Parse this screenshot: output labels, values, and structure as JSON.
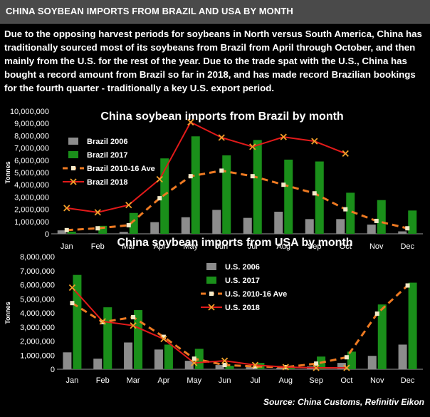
{
  "header": {
    "title": "CHINA SOYBEAN IMPORTS FROM BRAZIL AND USA BY MONTH"
  },
  "description": "Due to the opposing harvest periods for soybeans in North versus South America,  China has traditionally sourced most of its soybeans from Brazil from April through October, and then mainly from the U.S. for the rest of the year. Due to the trade spat with the U.S.,  China has bought a record amount from Brazil so far in 2018, and has made record Brazilian bookings for the fourth quarter - traditionally a key U.S. export period.",
  "source": "Source: China Customs, Refinitiv Eikon",
  "colors": {
    "bar_old": "#8c8c8c",
    "bar_new": "#1a8f1a",
    "avg_line": "#ee7a22",
    "line_2018": "#e21a1a",
    "background": "#000000",
    "text": "#ffffff"
  },
  "chart_data": [
    {
      "type": "bar",
      "title": "China soybean imports from Brazil by month",
      "ylabel": "Tonnes",
      "xlabel": "",
      "ylim": [
        0,
        10000000
      ],
      "yticks": [
        "0",
        "1,000,000",
        "2,000,000",
        "3,000,000",
        "4,000,000",
        "5,000,000",
        "6,000,000",
        "7,000,000",
        "8,000,000",
        "9,000,000",
        "10,000,000"
      ],
      "categories": [
        "Jan",
        "Feb",
        "Mar",
        "Apr",
        "May",
        "Jun",
        "Jul",
        "Aug",
        "Sep",
        "Oct",
        "Nov",
        "Dec"
      ],
      "legend_position": "left",
      "series": [
        {
          "name": "Brazil 2006",
          "kind": "bar",
          "values": [
            280000,
            40000,
            150000,
            950000,
            1350000,
            1950000,
            1300000,
            1800000,
            1200000,
            1200000,
            750000,
            200000
          ]
        },
        {
          "name": "Brazil 2017",
          "kind": "bar",
          "values": [
            180000,
            650000,
            1700000,
            6150000,
            7950000,
            6400000,
            7650000,
            6050000,
            5900000,
            3350000,
            2750000,
            1900000
          ]
        },
        {
          "name": "Brazil 2010-16 Ave",
          "kind": "line-dashed",
          "values": [
            300000,
            450000,
            700000,
            2900000,
            4700000,
            5150000,
            4700000,
            4000000,
            3300000,
            2000000,
            1050000,
            450000
          ]
        },
        {
          "name": "Brazil 2018",
          "kind": "line",
          "values": [
            2100000,
            1750000,
            2350000,
            4450000,
            9100000,
            7850000,
            7100000,
            7900000,
            7550000,
            6550000,
            null,
            null
          ]
        }
      ]
    },
    {
      "type": "bar",
      "title": "China soybean imports from USA by month",
      "ylabel": "Tonnes",
      "xlabel": "",
      "ylim": [
        0,
        8000000
      ],
      "yticks": [
        "0",
        "1,000,000",
        "2,000,000",
        "3,000,000",
        "4,000,000",
        "5,000,000",
        "6,000,000",
        "7,000,000",
        "8,000,000"
      ],
      "categories": [
        "Jan",
        "Feb",
        "Mar",
        "Apr",
        "May",
        "Jun",
        "Jul",
        "Aug",
        "Sep",
        "Oct",
        "Nov",
        "Dec"
      ],
      "legend_position": "center",
      "series": [
        {
          "name": "U.S. 2006",
          "kind": "bar",
          "values": [
            1200000,
            750000,
            1900000,
            1400000,
            600000,
            300000,
            150000,
            100000,
            200000,
            450000,
            950000,
            1750000
          ]
        },
        {
          "name": "U.S. 2017",
          "kind": "bar",
          "values": [
            6700000,
            4400000,
            4200000,
            1750000,
            1450000,
            250000,
            450000,
            200000,
            900000,
            1250000,
            4600000,
            6150000
          ]
        },
        {
          "name": "U.S. 2010-16 Ave",
          "kind": "line-dashed",
          "values": [
            4700000,
            3350000,
            3700000,
            2300000,
            750000,
            300000,
            200000,
            150000,
            400000,
            850000,
            3950000,
            5950000
          ]
        },
        {
          "name": "U.S. 2018",
          "kind": "line",
          "values": [
            5800000,
            3400000,
            3100000,
            2150000,
            450000,
            600000,
            300000,
            150000,
            100000,
            100000,
            null,
            null
          ]
        }
      ]
    }
  ]
}
